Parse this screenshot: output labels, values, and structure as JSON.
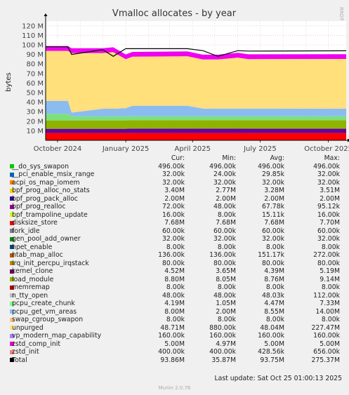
{
  "chart_data": {
    "type": "area",
    "title": "Vmalloc allocates - by year",
    "ylabel": "bytes",
    "side_text": "RRDTOOL / TOBI OETIKER",
    "ylim": [
      0,
      125000000
    ],
    "y_ticks": [
      {
        "value": 10000000,
        "label": "10 M"
      },
      {
        "value": 20000000,
        "label": "20 M"
      },
      {
        "value": 30000000,
        "label": "30 M"
      },
      {
        "value": 40000000,
        "label": "40 M"
      },
      {
        "value": 50000000,
        "label": "50 M"
      },
      {
        "value": 60000000,
        "label": "60 M"
      },
      {
        "value": 70000000,
        "label": "70 M"
      },
      {
        "value": 80000000,
        "label": "80 M"
      },
      {
        "value": 90000000,
        "label": "90 M"
      },
      {
        "value": 100000000,
        "label": "100 M"
      },
      {
        "value": 110000000,
        "label": "110 M"
      },
      {
        "value": 120000000,
        "label": "120 M"
      }
    ],
    "xlim": [
      "2024-09-15",
      "2025-10-25"
    ],
    "x_ticks": [
      {
        "date": "2024-10-01",
        "label": "October 2024"
      },
      {
        "date": "2025-01-01",
        "label": "January 2025"
      },
      {
        "date": "2025-04-01",
        "label": "April 2025"
      },
      {
        "date": "2025-07-01",
        "label": "July 2025"
      },
      {
        "date": "2025-10-01",
        "label": "October 2025"
      }
    ],
    "x_dates": [
      "2024-09-15",
      "2024-10-15",
      "2024-10-20",
      "2024-12-01",
      "2024-12-15",
      "2025-01-01",
      "2025-01-10",
      "2025-03-25",
      "2025-04-15",
      "2025-05-05",
      "2025-06-01",
      "2025-06-15",
      "2025-10-25"
    ],
    "stack_base": [
      "bpf_prog_alloc_no_stats",
      "disksize_store",
      "kernel_clone",
      "load_module",
      "pcpu_create_chunk",
      "pcpu_get_vm_areas"
    ],
    "series": [
      {
        "name": "disksize_store",
        "color": "#ff0000",
        "values": [
          7680000.0,
          7680000.0,
          7680000.0,
          7680000.0,
          7680000.0,
          7680000.0,
          7680000.0,
          7680000.0,
          7680000.0,
          7680000.0,
          7680000.0,
          7680000.0,
          7680000.0
        ]
      },
      {
        "name": "kernel_clone",
        "color": "#660099",
        "values": [
          4400000.0,
          4400000.0,
          4400000.0,
          4400000.0,
          4400000.0,
          4400000.0,
          4600000.0,
          4600000.0,
          4600000.0,
          4600000.0,
          4600000.0,
          4600000.0,
          4520000.0
        ]
      },
      {
        "name": "load_module",
        "color": "#8fb300",
        "values": [
          8800000.0,
          8800000.0,
          8800000.0,
          8800000.0,
          8800000.0,
          8800000.0,
          8800000.0,
          8800000.0,
          8800000.0,
          8800000.0,
          8800000.0,
          8800000.0,
          8800000.0
        ]
      },
      {
        "name": "pcpu_create_chunk",
        "color": "#7de07d",
        "values": [
          7000000.0,
          7000000.0,
          4200000.0,
          4200000.0,
          4200000.0,
          4200000.0,
          4200000.0,
          4200000.0,
          4200000.0,
          4200000.0,
          4200000.0,
          4200000.0,
          4190000.0
        ]
      },
      {
        "name": "pcpu_get_vm_areas",
        "color": "#8abcf0",
        "values": [
          13500000.0,
          13500000.0,
          4000000.0,
          8000000.0,
          8000000.0,
          8500000.0,
          11000000.0,
          11000000.0,
          8000000.0,
          8000000.0,
          8000000.0,
          8000000.0,
          8000000.0
        ]
      },
      {
        "name": "bpf_prog_alloc_no_stats",
        "color": "#ffdd80",
        "values": [
          3400000.0,
          3400000.0,
          3400000.0,
          3400000.0,
          3400000.0,
          3400000.0,
          3400000.0,
          3400000.0,
          3400000.0,
          3400000.0,
          3400000.0,
          3400000.0,
          3400000.0
        ]
      },
      {
        "name": "unpurged",
        "color": "#ffe07a",
        "values": [
          49000000.0,
          49000000.0,
          59000000.0,
          55000000.0,
          56000000.0,
          48000000.0,
          48000000.0,
          48500000.0,
          48000000.0,
          48000000.0,
          50000000.0,
          48500000.0,
          48700000.0
        ]
      },
      {
        "name": "zstd_comp_init",
        "color": "#f000f0",
        "values": [
          5000000.0,
          5000000.0,
          5000000.0,
          5000000.0,
          5000000.0,
          5000000.0,
          5000000.0,
          5000000.0,
          5000000.0,
          5000000.0,
          5000000.0,
          5000000.0,
          5000000.0
        ]
      }
    ],
    "total_line": {
      "name": "Total",
      "color": "#000000",
      "values": [
        98000000.0,
        98000000.0,
        90000000.0,
        95000000.0,
        88000000.0,
        96000000.0,
        96000000.0,
        96000000.0,
        94000000.0,
        88000000.0,
        94000000.0,
        93500000.0,
        93860000.0
      ]
    }
  },
  "legend": {
    "headers": {
      "cur": "Cur:",
      "min": "Min:",
      "avg": "Avg:",
      "max": "Max:"
    },
    "rows": [
      {
        "name": "__do_sys_swapon",
        "color": "#00cc00",
        "cur": "496.00k",
        "min": "496.00k",
        "avg": "496.00k",
        "max": "496.00k"
      },
      {
        "name": "__pci_enable_msix_range",
        "color": "#0066b3",
        "cur": "32.00k",
        "min": "24.00k",
        "avg": "29.85k",
        "max": "32.00k"
      },
      {
        "name": "acpi_os_map_iomem",
        "color": "#ff8000",
        "cur": "32.00k",
        "min": "32.00k",
        "avg": "32.00k",
        "max": "32.00k"
      },
      {
        "name": "bpf_prog_alloc_no_stats",
        "color": "#ffcc00",
        "cur": "3.40M",
        "min": "2.77M",
        "avg": "3.28M",
        "max": "3.51M"
      },
      {
        "name": "bpf_prog_pack_alloc",
        "color": "#330099",
        "cur": "2.00M",
        "min": "2.00M",
        "avg": "2.00M",
        "max": "2.00M"
      },
      {
        "name": "bpf_prog_realloc",
        "color": "#990099",
        "cur": "72.00k",
        "min": "48.00k",
        "avg": "67.78k",
        "max": "95.12k"
      },
      {
        "name": "bpf_trampoline_update",
        "color": "#ccff00",
        "cur": "16.00k",
        "min": "8.00k",
        "avg": "15.11k",
        "max": "16.00k"
      },
      {
        "name": "disksize_store",
        "color": "#ff0000",
        "cur": "7.68M",
        "min": "7.68M",
        "avg": "7.68M",
        "max": "7.70M"
      },
      {
        "name": "fork_idle",
        "color": "#808080",
        "cur": "60.00k",
        "min": "60.00k",
        "avg": "60.00k",
        "max": "60.00k"
      },
      {
        "name": "gen_pool_add_owner",
        "color": "#008f00",
        "cur": "32.00k",
        "min": "32.00k",
        "avg": "32.00k",
        "max": "32.00k"
      },
      {
        "name": "hpet_enable",
        "color": "#00487d",
        "cur": "8.00k",
        "min": "8.00k",
        "avg": "8.00k",
        "max": "8.00k"
      },
      {
        "name": "htab_map_alloc",
        "color": "#b35a00",
        "cur": "136.00k",
        "min": "136.00k",
        "avg": "151.17k",
        "max": "272.00k"
      },
      {
        "name": "irq_init_percpu_irqstack",
        "color": "#b38f00",
        "cur": "80.00k",
        "min": "80.00k",
        "avg": "80.00k",
        "max": "80.00k"
      },
      {
        "name": "kernel_clone",
        "color": "#6b006b",
        "cur": "4.52M",
        "min": "3.65M",
        "avg": "4.39M",
        "max": "5.19M"
      },
      {
        "name": "load_module",
        "color": "#8fb300",
        "cur": "8.80M",
        "min": "8.05M",
        "avg": "8.76M",
        "max": "9.14M"
      },
      {
        "name": "memremap",
        "color": "#b30000",
        "cur": "8.00k",
        "min": "8.00k",
        "avg": "8.00k",
        "max": "8.00k"
      },
      {
        "name": "n_tty_open",
        "color": "#bebebe",
        "cur": "48.00k",
        "min": "48.00k",
        "avg": "48.03k",
        "max": "112.00k"
      },
      {
        "name": "pcpu_create_chunk",
        "color": "#80ff80",
        "cur": "4.19M",
        "min": "1.05M",
        "avg": "4.47M",
        "max": "7.33M"
      },
      {
        "name": "pcpu_get_vm_areas",
        "color": "#80c9ff",
        "cur": "8.00M",
        "min": "2.00M",
        "avg": "8.55M",
        "max": "14.00M"
      },
      {
        "name": "swap_cgroup_swapon",
        "color": "#ffc080",
        "cur": "8.00k",
        "min": "8.00k",
        "avg": "8.00k",
        "max": "8.00k"
      },
      {
        "name": "unpurged",
        "color": "#ffe680",
        "cur": "48.71M",
        "min": "880.00k",
        "avg": "48.04M",
        "max": "227.47M"
      },
      {
        "name": "vp_modern_map_capability",
        "color": "#aa80ff",
        "cur": "160.00k",
        "min": "160.00k",
        "avg": "160.00k",
        "max": "160.00k"
      },
      {
        "name": "zstd_comp_init",
        "color": "#ee00cc",
        "cur": "5.00M",
        "min": "4.97M",
        "avg": "5.00M",
        "max": "5.00M"
      },
      {
        "name": "zstd_init",
        "color": "#ff8080",
        "cur": "400.00k",
        "min": "400.00k",
        "avg": "428.56k",
        "max": "656.00k"
      },
      {
        "name": "Total",
        "color": "#000000",
        "cur": "93.86M",
        "min": "35.87M",
        "avg": "93.75M",
        "max": "275.37M"
      }
    ]
  },
  "footer": {
    "last_update": "Last update: Sat Oct 25 01:00:13 2025",
    "munin": "Munin 2.0.76"
  }
}
